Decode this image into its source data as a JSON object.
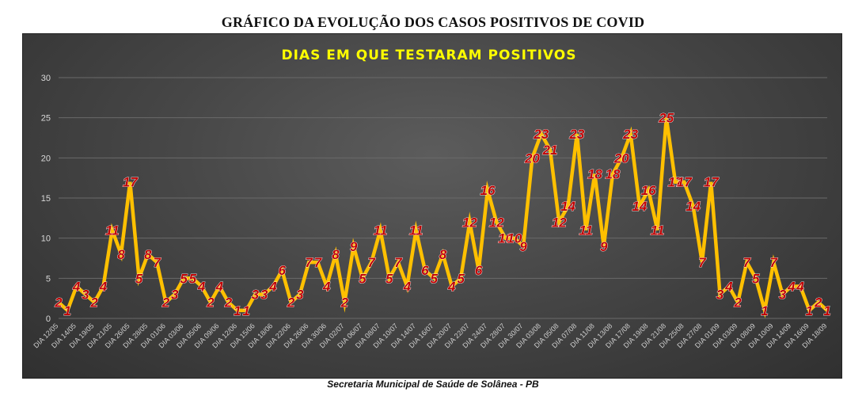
{
  "page": {
    "title": "GRÁFICO DA EVOLUÇÃO DOS CASOS POSITIVOS DE COVID",
    "footer": "Secretaria Municipal de Saúde de Solânea - PB"
  },
  "colors": {
    "background": "#ffffff",
    "panel": "#474747",
    "line": "#ffc000",
    "label": "#c00000",
    "chart_title": "#ffff00",
    "grid": "#6a6a6a"
  },
  "chart_data": {
    "type": "line",
    "title": "DIAS EM QUE TESTARAM POSITIVOS",
    "xlabel": "",
    "ylabel": "",
    "ylim": [
      0,
      30
    ],
    "yticks": [
      0,
      5,
      10,
      15,
      20,
      25,
      30
    ],
    "grid": true,
    "legend": "none",
    "x_tick_labels": [
      "DIA 12/05",
      "DIA 14/05",
      "DIA 19/05",
      "DIA 21/05",
      "DIA 26/05",
      "DIA 28/05",
      "DIA 01/06",
      "DIA 03/06",
      "DIA 05/06",
      "DIA 09/06",
      "DIA 12/06",
      "DIA 15/06",
      "DIA 18/06",
      "DIA 22/06",
      "DIA 26/06",
      "DIA 30/06",
      "DIA 02/07",
      "DIA 06/07",
      "DIA 08/07",
      "DIA 10/07",
      "DIA 14/07",
      "DIA 16/07",
      "DIA 20/07",
      "DIA 22/07",
      "DIA 24/07",
      "DIA 28/07",
      "DIA 30/07",
      "DIA 03/08",
      "DIA 05/08",
      "DIA 07/08",
      "DIA 11/08",
      "DIA 13/08",
      "DIA 17/08",
      "DIA 19/08",
      "DIA 21/08",
      "DIA 25/08",
      "DIA 27/08",
      "DIA 01/09",
      "DIA 03/09",
      "DIA 08/09",
      "DIA 10/09",
      "DIA 14/09",
      "DIA 16/09",
      "DIA 18/09"
    ],
    "series": [
      {
        "values": [
          2,
          1,
          4,
          3,
          2,
          4,
          11,
          8,
          17,
          5,
          8,
          7,
          2,
          3,
          5,
          5,
          4,
          2,
          4,
          2,
          1,
          1,
          3,
          3,
          4,
          6,
          2,
          3,
          7,
          7,
          4,
          8,
          2,
          9,
          5,
          7,
          11,
          5,
          7,
          4,
          11,
          6,
          5,
          8,
          4,
          5,
          12,
          6,
          16,
          12,
          10,
          10,
          9,
          20,
          23,
          21,
          12,
          14,
          23,
          11,
          18,
          9,
          18,
          20,
          23,
          14,
          16,
          11,
          25,
          17,
          17,
          14,
          7,
          17,
          3,
          4,
          2,
          7,
          5,
          1,
          7,
          3,
          4,
          4,
          1,
          2,
          1
        ]
      }
    ]
  }
}
